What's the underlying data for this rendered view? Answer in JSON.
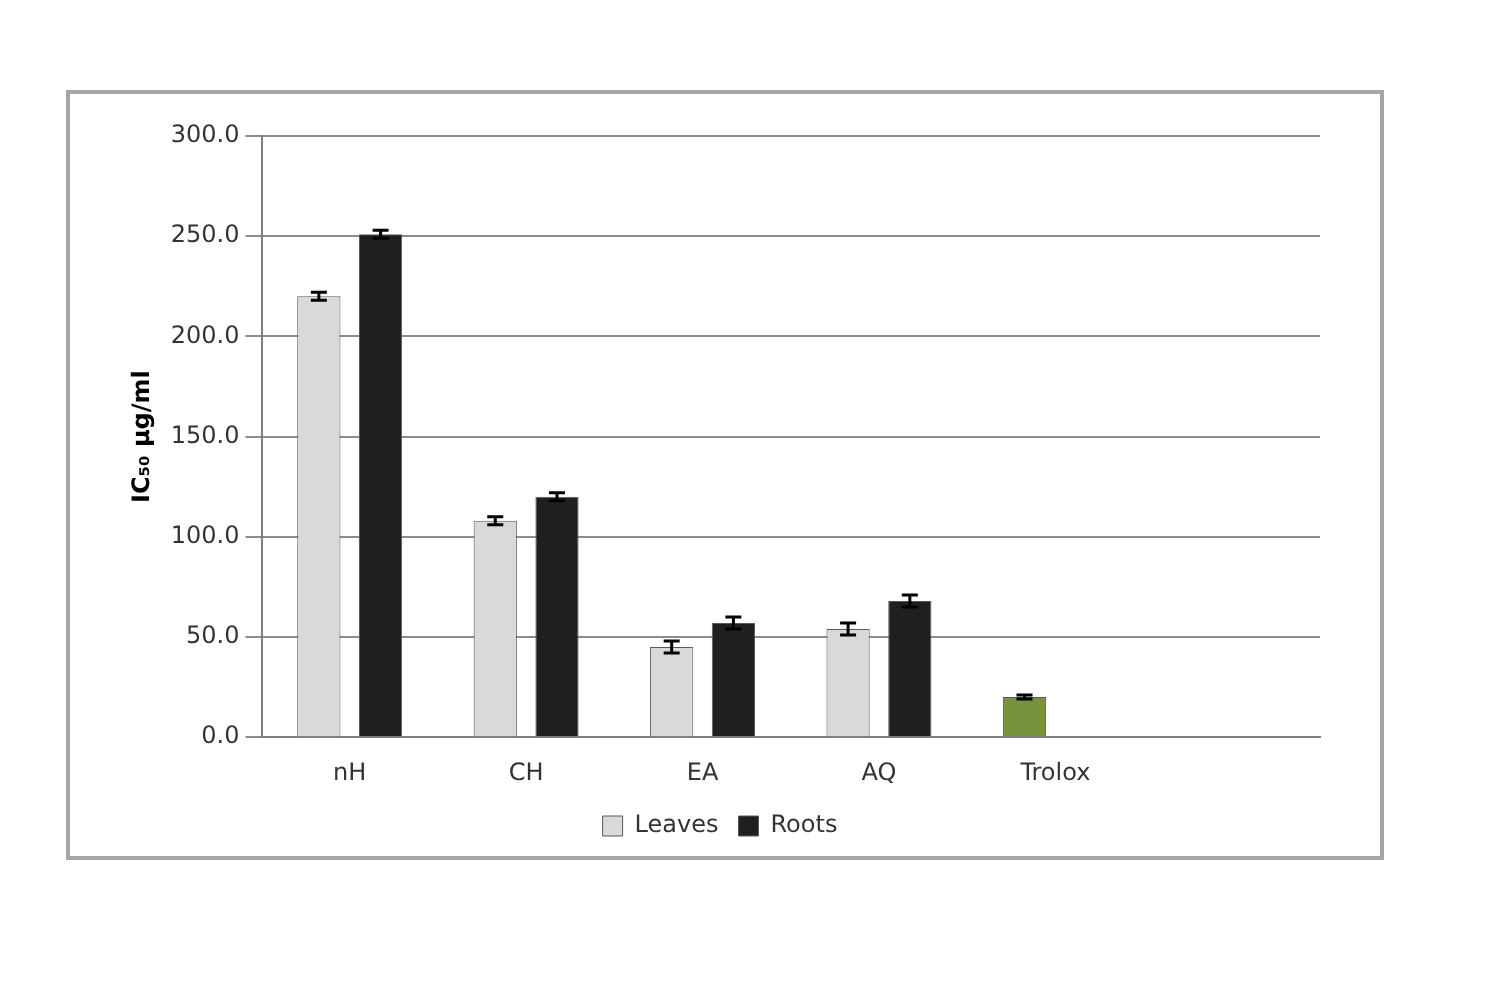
{
  "chart_data": {
    "type": "bar",
    "ylabel": "IC₅₀ µg/ml",
    "categories": [
      "nH",
      "CH",
      "EA",
      "AQ",
      "Trolox",
      null
    ],
    "series": [
      {
        "name": "Leaves",
        "color": "#d9d9d9",
        "colors": [
          "#d9d9d9",
          "#d9d9d9",
          "#d9d9d9",
          "#d9d9d9",
          "#77933c",
          null
        ],
        "values": [
          220,
          108,
          45,
          54,
          20,
          null
        ],
        "errors": [
          2,
          2,
          3,
          3,
          1,
          null
        ]
      },
      {
        "name": "Roots",
        "color": "#1f1f1f",
        "values": [
          251,
          120,
          57,
          68,
          null,
          null
        ],
        "errors": [
          2,
          2,
          3,
          3,
          null,
          null
        ]
      }
    ],
    "ylim": [
      0,
      300
    ],
    "yticks": [
      {
        "value": 0,
        "label": "0.0"
      },
      {
        "value": 50,
        "label": "50.0"
      },
      {
        "value": 100,
        "label": "100.0"
      },
      {
        "value": 150,
        "label": "150.0"
      },
      {
        "value": 200,
        "label": "200.0"
      },
      {
        "value": 250,
        "label": "250.0"
      },
      {
        "value": 300,
        "label": "300.0"
      }
    ],
    "grid": "y",
    "legend": "bottom"
  }
}
